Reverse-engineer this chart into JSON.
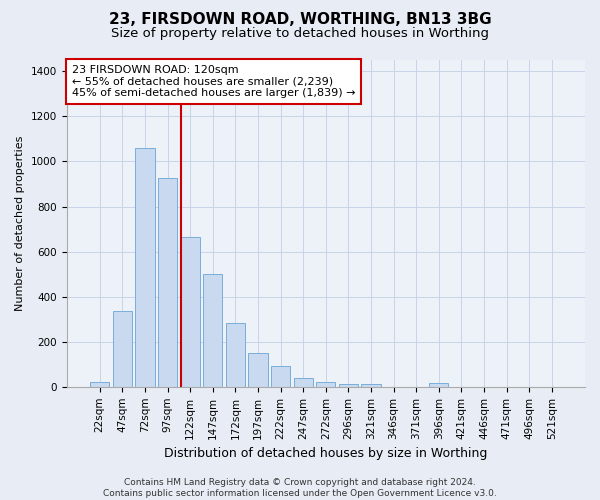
{
  "title1": "23, FIRSDOWN ROAD, WORTHING, BN13 3BG",
  "title2": "Size of property relative to detached houses in Worthing",
  "xlabel": "Distribution of detached houses by size in Worthing",
  "ylabel": "Number of detached properties",
  "bar_labels": [
    "22sqm",
    "47sqm",
    "72sqm",
    "97sqm",
    "122sqm",
    "147sqm",
    "172sqm",
    "197sqm",
    "222sqm",
    "247sqm",
    "272sqm",
    "296sqm",
    "321sqm",
    "346sqm",
    "371sqm",
    "396sqm",
    "421sqm",
    "446sqm",
    "471sqm",
    "496sqm",
    "521sqm"
  ],
  "bar_values": [
    20,
    335,
    1060,
    925,
    665,
    500,
    285,
    148,
    92,
    38,
    22,
    14,
    13,
    0,
    0,
    18,
    0,
    0,
    0,
    0,
    0
  ],
  "bar_color": "#c9d9ef",
  "bar_edge_color": "#7aadda",
  "vline_color": "#cc0000",
  "vline_bar_index": 4,
  "annotation_line1": "23 FIRSDOWN ROAD: 120sqm",
  "annotation_line2": "← 55% of detached houses are smaller (2,239)",
  "annotation_line3": "45% of semi-detached houses are larger (1,839) →",
  "annotation_box_edge_color": "#cc0000",
  "ylim_max": 1450,
  "yticks": [
    0,
    200,
    400,
    600,
    800,
    1000,
    1200,
    1400
  ],
  "grid_color": "#c8d4e8",
  "background_color": "#e8edf5",
  "plot_bg_color": "#edf2f9",
  "footer_text": "Contains HM Land Registry data © Crown copyright and database right 2024.\nContains public sector information licensed under the Open Government Licence v3.0.",
  "title1_fontsize": 11,
  "title2_fontsize": 9.5,
  "xlabel_fontsize": 9,
  "ylabel_fontsize": 8,
  "tick_fontsize": 7.5,
  "annot_fontsize": 8,
  "footer_fontsize": 6.5
}
